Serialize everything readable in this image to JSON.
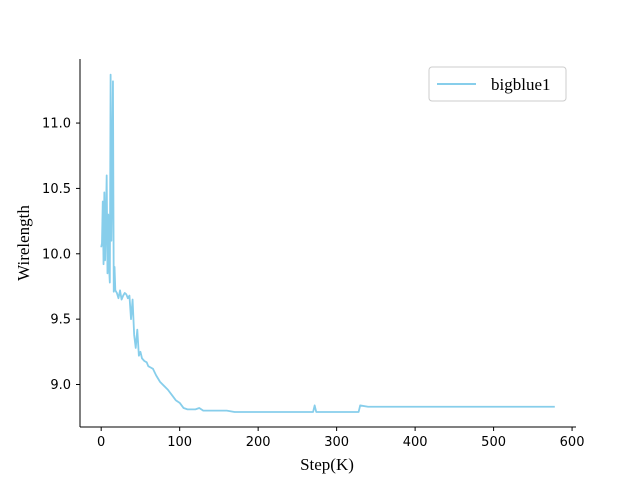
{
  "chart_data": {
    "type": "line",
    "title": "",
    "xlabel": "Step(K)",
    "ylabel": "Wirelength",
    "xlim": [
      -27,
      605
    ],
    "ylim": [
      8.675,
      11.49
    ],
    "x_ticks": [
      0,
      100,
      200,
      300,
      400,
      500,
      600
    ],
    "y_ticks": [
      9.0,
      9.5,
      10.0,
      10.5,
      11.0
    ],
    "x_tick_labels": [
      "0",
      "100",
      "200",
      "300",
      "400",
      "500",
      "600"
    ],
    "y_tick_labels": [
      "9.0",
      "9.5",
      "10.0",
      "10.5",
      "11.0"
    ],
    "grid": false,
    "legend_position": "top-right",
    "series": [
      {
        "name": "bigblue1",
        "color": "#87CEEB",
        "x": [
          0,
          1,
          2,
          3,
          4,
          5,
          6,
          7,
          8,
          9,
          10,
          11,
          12,
          13,
          14,
          15,
          16,
          17,
          18,
          19,
          20,
          22,
          24,
          26,
          28,
          30,
          32,
          34,
          36,
          38,
          40,
          42,
          44,
          46,
          48,
          50,
          52,
          55,
          58,
          60,
          63,
          66,
          70,
          75,
          80,
          85,
          90,
          95,
          100,
          105,
          110,
          120,
          125,
          130,
          140,
          150,
          160,
          170,
          180,
          190,
          200,
          220,
          240,
          260,
          270,
          272,
          274,
          280,
          300,
          320,
          328,
          330,
          340,
          360,
          370,
          380,
          400,
          420,
          450,
          480,
          500,
          520,
          550,
          578
        ],
        "y": [
          10.05,
          10.08,
          10.4,
          9.92,
          10.47,
          9.95,
          10.25,
          10.6,
          9.85,
          10.3,
          9.9,
          9.78,
          11.37,
          10.1,
          10.6,
          11.32,
          9.71,
          9.9,
          9.72,
          9.71,
          9.7,
          9.66,
          9.72,
          9.65,
          9.68,
          9.7,
          9.69,
          9.66,
          9.68,
          9.5,
          9.65,
          9.38,
          9.28,
          9.42,
          9.22,
          9.25,
          9.2,
          9.18,
          9.17,
          9.14,
          9.13,
          9.12,
          9.07,
          9.02,
          8.99,
          8.96,
          8.92,
          8.88,
          8.86,
          8.82,
          8.81,
          8.81,
          8.82,
          8.8,
          8.8,
          8.8,
          8.8,
          8.79,
          8.79,
          8.79,
          8.79,
          8.79,
          8.79,
          8.79,
          8.79,
          8.84,
          8.79,
          8.79,
          8.79,
          8.79,
          8.79,
          8.84,
          8.83,
          8.83,
          8.83,
          8.83,
          8.83,
          8.83,
          8.83,
          8.83,
          8.83,
          8.83,
          8.83,
          8.83
        ]
      }
    ]
  }
}
